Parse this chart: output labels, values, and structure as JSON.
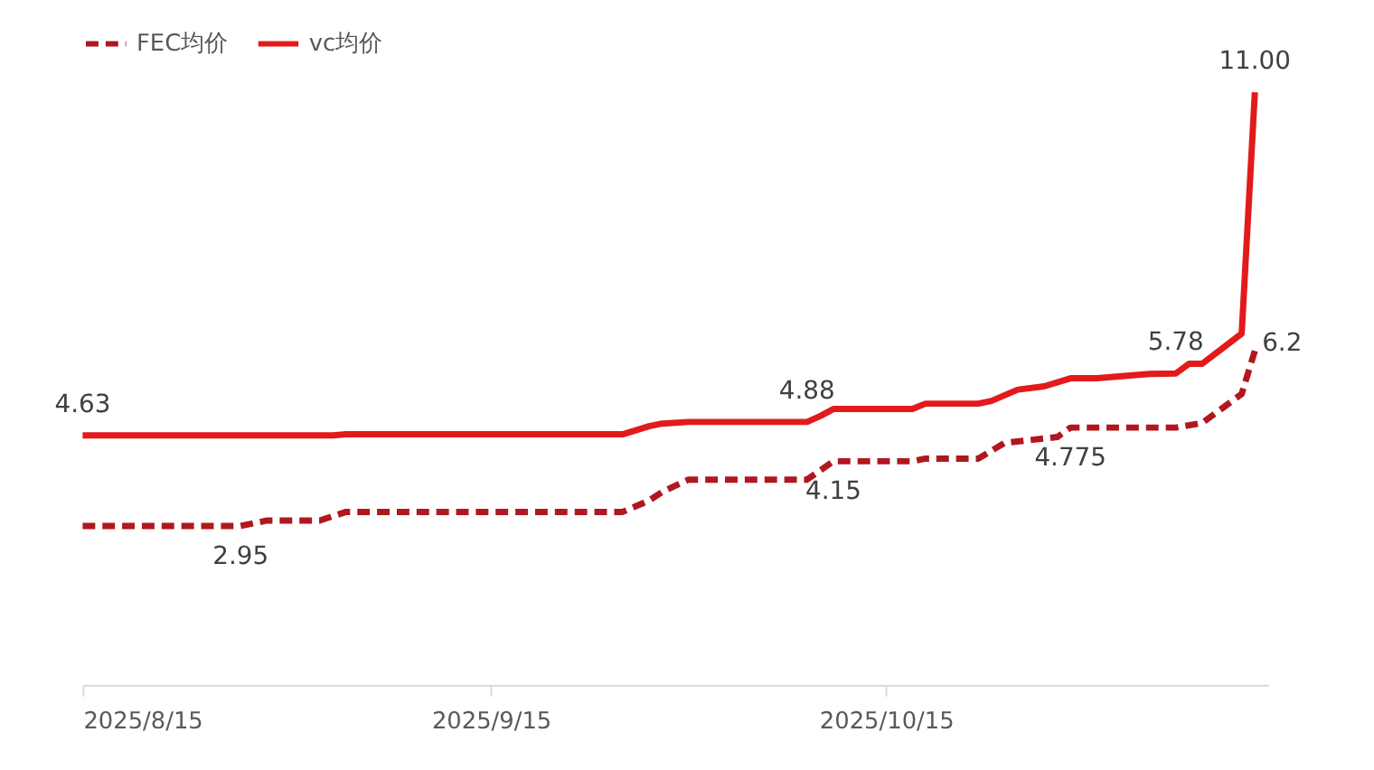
{
  "chart_data": {
    "type": "line",
    "xlim": [
      "2025-08-15",
      "2025-11-13"
    ],
    "xticks": [
      {
        "value": "2025-08-15",
        "label": "2025/8/15"
      },
      {
        "value": "2025-09-15",
        "label": "2025/9/15"
      },
      {
        "value": "2025-10-15",
        "label": "2025/10/15"
      }
    ],
    "legend": "top",
    "grid": false,
    "marker": "none",
    "series": [
      {
        "name": "FEC均价",
        "color": "#b0171f",
        "line_style": "dashed",
        "x": [
          "2025-08-15",
          "2025-08-27",
          "2025-08-29",
          "2025-09-02",
          "2025-09-04",
          "2025-09-25",
          "2025-09-27",
          "2025-09-28",
          "2025-09-30",
          "2025-10-09",
          "2025-10-11",
          "2025-10-17",
          "2025-10-18",
          "2025-10-22",
          "2025-10-24",
          "2025-10-28",
          "2025-10-29",
          "2025-11-06",
          "2025-11-08",
          "2025-11-11",
          "2025-11-12"
        ],
        "values": [
          2.95,
          2.95,
          3.05,
          3.05,
          3.21,
          3.21,
          3.42,
          3.58,
          3.81,
          3.81,
          4.15,
          4.15,
          4.2,
          4.2,
          4.49,
          4.6,
          4.775,
          4.775,
          4.86,
          5.4,
          6.2
        ],
        "value_labels": [
          null,
          "2.95",
          null,
          null,
          null,
          null,
          null,
          null,
          null,
          null,
          "4.15",
          null,
          null,
          null,
          null,
          null,
          "4.775",
          null,
          null,
          null,
          "6.2"
        ]
      },
      {
        "name": "vc均价",
        "color": "#e31a1c",
        "line_style": "solid",
        "x": [
          "2025-08-15",
          "2025-09-03",
          "2025-09-04",
          "2025-09-25",
          "2025-09-27",
          "2025-09-28",
          "2025-09-30",
          "2025-10-09",
          "2025-10-10",
          "2025-10-11",
          "2025-10-17",
          "2025-10-18",
          "2025-10-22",
          "2025-10-23",
          "2025-10-25",
          "2025-10-27",
          "2025-10-29",
          "2025-10-31",
          "2025-11-04",
          "2025-11-06",
          "2025-11-07",
          "2025-11-08",
          "2025-11-11",
          "2025-11-12"
        ],
        "values": [
          4.63,
          4.63,
          4.65,
          4.65,
          4.8,
          4.85,
          4.88,
          4.88,
          4.99,
          5.12,
          5.12,
          5.22,
          5.22,
          5.27,
          5.48,
          5.54,
          5.69,
          5.69,
          5.77,
          5.78,
          5.96,
          5.96,
          6.52,
          11.0
        ],
        "value_labels": [
          "4.63",
          null,
          null,
          null,
          null,
          null,
          null,
          "4.88",
          null,
          null,
          null,
          null,
          null,
          null,
          null,
          null,
          null,
          null,
          null,
          "5.78",
          null,
          null,
          null,
          "11.00"
        ]
      }
    ]
  }
}
